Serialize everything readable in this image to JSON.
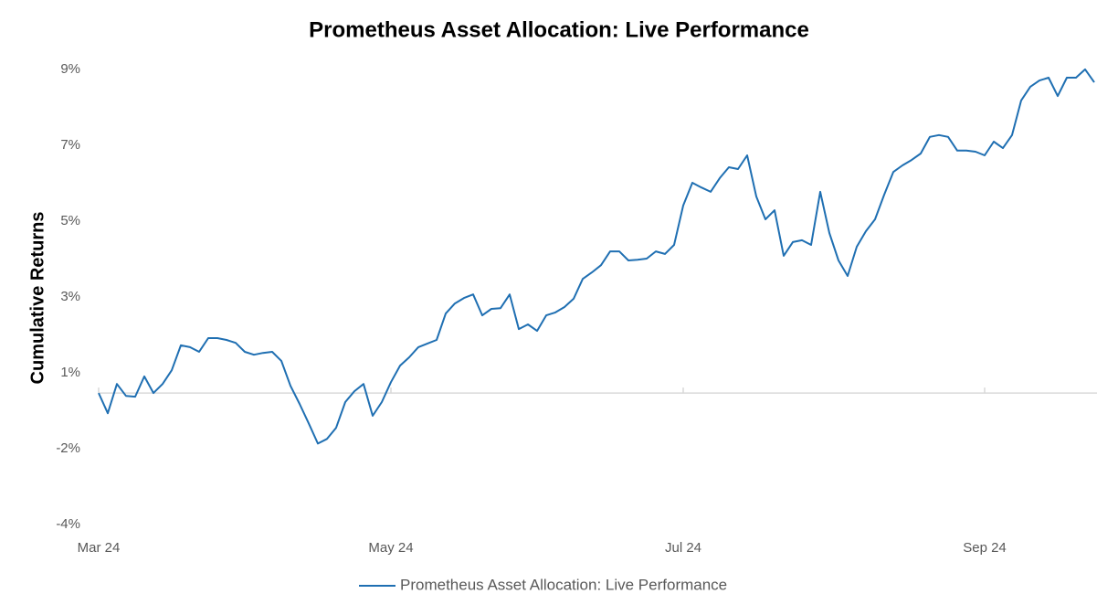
{
  "chart_data": {
    "type": "line",
    "title": "Prometheus Asset Allocation: Live Performance",
    "y_label": "Cumulative Returns",
    "legend": "bottom",
    "categories": [
      "Mar 24",
      null,
      null,
      null,
      null,
      null,
      null,
      null,
      null,
      null,
      null,
      null,
      null,
      null,
      null,
      null,
      null,
      null,
      null,
      null,
      null,
      null,
      null,
      null,
      null,
      null,
      null,
      null,
      null,
      null,
      null,
      null,
      "May 24",
      null,
      null,
      null,
      null,
      null,
      null,
      null,
      null,
      null,
      null,
      null,
      null,
      null,
      null,
      null,
      null,
      null,
      null,
      null,
      null,
      null,
      null,
      null,
      null,
      null,
      null,
      null,
      null,
      null,
      null,
      null,
      "Jul 24",
      null,
      null,
      null,
      null,
      null,
      null,
      null,
      null,
      null,
      null,
      null,
      null,
      null,
      null,
      null,
      null,
      null,
      null,
      null,
      null,
      null,
      null,
      null,
      null,
      null,
      null,
      null,
      null,
      null,
      null,
      null,
      null,
      "Sep 24",
      null,
      null,
      null,
      null,
      null,
      null,
      null,
      null,
      null,
      null,
      null,
      null
    ],
    "series": [
      {
        "name": "Prometheus Asset Allocation: Live Performance",
        "color": "#1f6fb2",
        "values": [
          0,
          -0.56,
          0.25,
          -0.08,
          -0.1,
          0.46,
          0,
          0.25,
          0.63,
          1.32,
          1.27,
          1.14,
          1.52,
          1.52,
          1.47,
          1.39,
          1.14,
          1.06,
          1.11,
          1.14,
          0.89,
          0.2,
          -0.3,
          -0.84,
          -1.4,
          -1.27,
          -0.96,
          -0.25,
          0.05,
          0.25,
          -0.63,
          -0.25,
          0.3,
          0.76,
          0.99,
          1.27,
          1.37,
          1.47,
          2.2,
          2.48,
          2.63,
          2.73,
          2.15,
          2.33,
          2.35,
          2.73,
          1.77,
          1.9,
          1.72,
          2.15,
          2.23,
          2.38,
          2.61,
          3.16,
          3.34,
          3.54,
          3.92,
          3.92,
          3.67,
          3.69,
          3.72,
          3.92,
          3.85,
          4.1,
          5.19,
          5.82,
          5.69,
          5.57,
          5.95,
          6.25,
          6.2,
          6.58,
          5.44,
          4.81,
          5.06,
          3.8,
          4.18,
          4.23,
          4.1,
          5.57,
          4.43,
          3.67,
          3.24,
          4.05,
          4.48,
          4.81,
          5.49,
          6.12,
          6.3,
          6.45,
          6.63,
          7.09,
          7.14,
          7.09,
          6.71,
          6.71,
          6.68,
          6.58,
          6.96,
          6.78,
          7.14,
          8.1,
          8.48,
          8.65,
          8.73,
          8.22,
          8.73,
          8.73,
          8.96,
          8.6
        ]
      }
    ],
    "ylim": [
      -3.64,
      9.4
    ],
    "yticks": [
      {
        "value": -3.64,
        "label": "-4%"
      },
      {
        "value": -1.54,
        "label": "-2%"
      },
      {
        "value": 0.56,
        "label": "1%"
      },
      {
        "value": 2.66,
        "label": "3%"
      },
      {
        "value": 4.76,
        "label": "5%"
      },
      {
        "value": 6.86,
        "label": "7%"
      },
      {
        "value": 8.96,
        "label": "9%"
      }
    ],
    "grid": false
  }
}
